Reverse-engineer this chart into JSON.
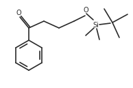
{
  "bg_color": "#ffffff",
  "line_color": "#2a2a2a",
  "lw": 1.2,
  "figsize": [
    1.94,
    1.29
  ],
  "dpi": 100,
  "xlim": [
    0,
    194
  ],
  "ylim": [
    0,
    129
  ]
}
